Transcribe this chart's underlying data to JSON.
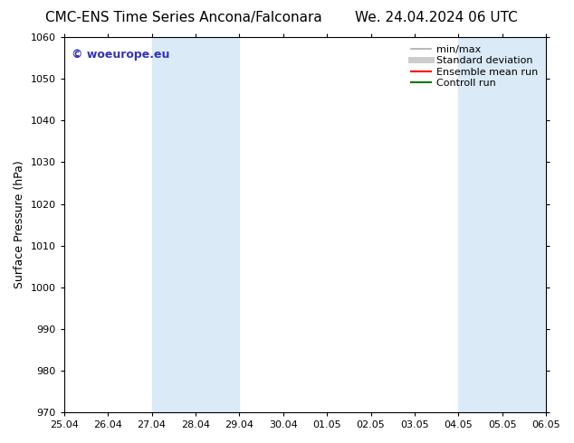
{
  "title_left": "CMC-ENS Time Series Ancona/Falconara",
  "title_right": "We. 24.04.2024 06 UTC",
  "ylabel": "Surface Pressure (hPa)",
  "ylim": [
    970,
    1060
  ],
  "yticks": [
    970,
    980,
    990,
    1000,
    1010,
    1020,
    1030,
    1040,
    1050,
    1060
  ],
  "xtick_labels": [
    "25.04",
    "26.04",
    "27.04",
    "28.04",
    "29.04",
    "30.04",
    "01.05",
    "02.05",
    "03.05",
    "04.05",
    "05.05",
    "06.05"
  ],
  "background_color": "#ffffff",
  "shaded_regions": [
    {
      "xstart": 2.0,
      "xend": 4.0
    },
    {
      "xstart": 9.0,
      "xend": 11.0
    }
  ],
  "shaded_color": "#daeaf7",
  "watermark_text": "© woeurope.eu",
  "watermark_color": "#3333bb",
  "legend_entries": [
    {
      "label": "min/max",
      "color": "#aaaaaa",
      "lw": 1.2
    },
    {
      "label": "Standard deviation",
      "color": "#cccccc",
      "lw": 5.0
    },
    {
      "label": "Ensemble mean run",
      "color": "#ff0000",
      "lw": 1.5
    },
    {
      "label": "Controll run",
      "color": "#007700",
      "lw": 1.5
    }
  ],
  "title_fontsize": 11,
  "ylabel_fontsize": 9,
  "tick_fontsize": 8,
  "legend_fontsize": 8,
  "watermark_fontsize": 9
}
